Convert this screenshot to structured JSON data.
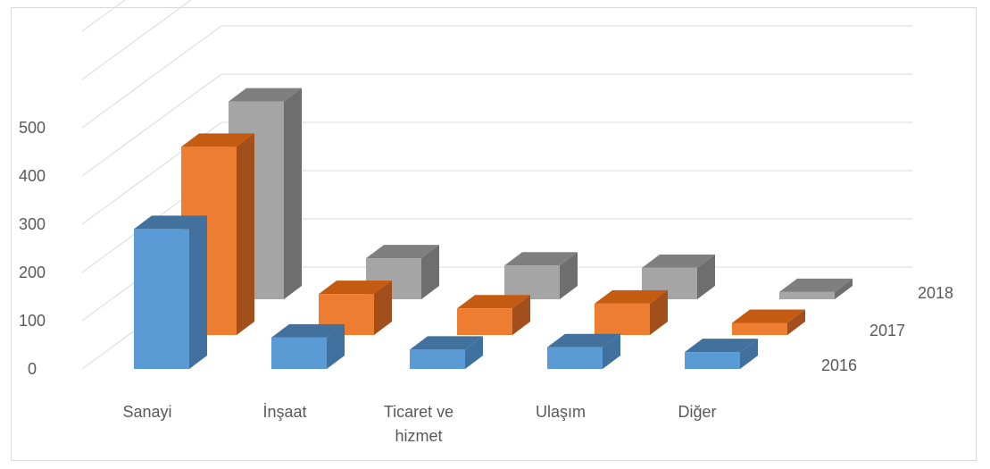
{
  "chart_data": {
    "type": "bar",
    "categories": [
      "Sanayi",
      "İnşaat",
      "Ticaret ve hizmet",
      "Ulaşım",
      "Diğer"
    ],
    "category_lines": [
      [
        "Sanayi"
      ],
      [
        "İnşaat"
      ],
      [
        "Ticaret ve",
        "hizmet"
      ],
      [
        "Ulaşım"
      ],
      [
        "Diğer"
      ]
    ],
    "series": [
      {
        "name": "2016",
        "values": [
          290,
          65,
          40,
          45,
          35
        ]
      },
      {
        "name": "2017",
        "values": [
          390,
          85,
          55,
          65,
          25
        ]
      },
      {
        "name": "2018",
        "values": [
          410,
          85,
          70,
          65,
          15
        ]
      }
    ],
    "y_ticks": [
      "0",
      "100",
      "200",
      "300",
      "400",
      "500"
    ],
    "ylim": [
      0,
      500
    ],
    "grid": true,
    "legend": "none",
    "colors": {
      "2016": {
        "front": "#5b9bd5",
        "side": "#3f709e",
        "top": "#41719c"
      },
      "2017": {
        "front": "#ed7d31",
        "side": "#a34f1b",
        "top": "#c55a11"
      },
      "2018": {
        "front": "#a5a5a5",
        "side": "#6e6e6e",
        "top": "#7f7f7f"
      },
      "grid": "#d9d9d9",
      "text": "#595959"
    }
  }
}
